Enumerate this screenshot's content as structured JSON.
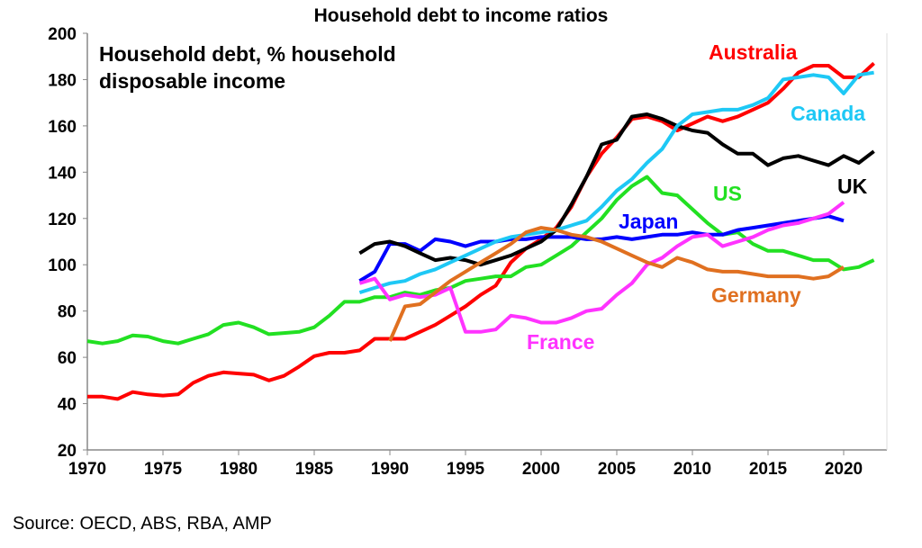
{
  "chart_data": {
    "type": "line",
    "title": "Household debt to income ratios",
    "subtitle_line1": "Household debt, % household",
    "subtitle_line2": "disposable income",
    "source": "Source: OECD, ABS, RBA, AMP",
    "xlim": [
      1970,
      2022
    ],
    "ylim": [
      20,
      200
    ],
    "xticks": [
      "1970",
      "1975",
      "1980",
      "1985",
      "1990",
      "1995",
      "2000",
      "2005",
      "2010",
      "2015",
      "2020"
    ],
    "yticks": [
      "20",
      "40",
      "60",
      "80",
      "100",
      "120",
      "140",
      "160",
      "180",
      "200"
    ],
    "grid": false,
    "series": [
      {
        "name": "Australia",
        "color": "#ff0000",
        "start": 1970,
        "values": [
          43,
          43,
          42,
          45,
          44,
          43.5,
          44,
          49,
          52,
          53.5,
          53,
          52.5,
          50,
          52,
          56,
          60.5,
          62,
          62,
          63,
          68,
          68,
          68,
          71,
          74,
          78,
          82,
          87,
          91,
          101,
          107,
          111,
          116,
          125,
          138,
          148,
          155,
          163,
          164,
          162,
          158,
          161,
          164,
          162,
          164,
          167,
          170,
          176,
          183,
          186,
          186,
          181,
          181,
          187
        ]
      },
      {
        "name": "US",
        "color": "#22e022",
        "start": 1970,
        "values": [
          67,
          66,
          67,
          69.5,
          69,
          67,
          66,
          68,
          70,
          74,
          75,
          73,
          70,
          70.5,
          71,
          73,
          78,
          84,
          84,
          86,
          86,
          88,
          87,
          89,
          90,
          93,
          94,
          95,
          95,
          99,
          100,
          104,
          108,
          114,
          120,
          128,
          134,
          138,
          131,
          130,
          124,
          118,
          113,
          114,
          109,
          106,
          106,
          104,
          102,
          102,
          98,
          99,
          102
        ]
      },
      {
        "name": "Japan",
        "color": "#0000ff",
        "start": 1988,
        "values": [
          93,
          97,
          109,
          109,
          106,
          111,
          110,
          108,
          110,
          110,
          111,
          111,
          112,
          112,
          112,
          111,
          111,
          112,
          111,
          112,
          113,
          113,
          114,
          113,
          113,
          115,
          116,
          117,
          118,
          119,
          120,
          121,
          119
        ]
      },
      {
        "name": "UK",
        "color": "#000000",
        "start": 1988,
        "values": [
          105,
          109,
          110,
          108,
          105,
          102,
          103,
          102,
          100,
          102,
          104,
          107,
          110,
          115,
          126,
          138,
          152,
          154,
          164,
          165,
          163,
          160,
          158,
          157,
          152,
          148,
          148,
          143,
          146,
          147,
          145,
          143,
          147,
          144,
          149
        ]
      },
      {
        "name": "Canada",
        "color": "#1ec8f5",
        "start": 1988,
        "values": [
          88,
          90,
          92,
          93,
          96,
          98,
          101,
          104,
          107,
          110,
          112,
          113,
          114,
          115,
          117,
          119,
          125,
          132,
          137,
          144,
          150,
          160,
          165,
          166,
          167,
          167,
          169,
          172,
          180,
          181,
          182,
          181,
          174,
          182,
          183
        ]
      },
      {
        "name": "France",
        "color": "#ff33ff",
        "start": 1988,
        "values": [
          92,
          94,
          85,
          87,
          86,
          87,
          90,
          71,
          71,
          72,
          78,
          77,
          75,
          75,
          77,
          80,
          81,
          87,
          92,
          100,
          103,
          108,
          112,
          113,
          108,
          110,
          112,
          115,
          117,
          118,
          120,
          122,
          127
        ]
      },
      {
        "name": "Germany",
        "color": "#e07020",
        "start": 1990,
        "values": [
          67,
          82,
          83,
          88,
          93,
          97,
          101,
          105,
          109,
          114,
          116,
          115,
          113,
          112,
          110,
          107,
          104,
          101,
          99,
          103,
          101,
          98,
          97,
          97,
          96,
          95,
          95,
          95,
          94,
          95,
          99
        ]
      }
    ]
  }
}
